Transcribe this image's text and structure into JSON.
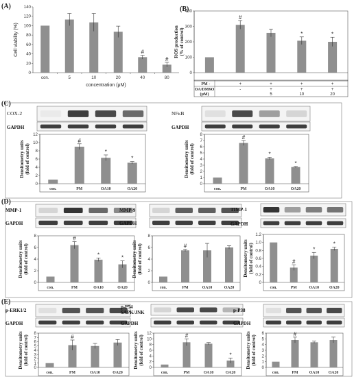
{
  "panel_labels": [
    "(A)",
    "(B)",
    "(C)",
    "(D)",
    "(E)"
  ],
  "bar_color": "#8f8f8f",
  "treatment_table": {
    "rows": [
      {
        "label": "PM",
        "cells": [
          "-",
          "+",
          "+",
          "+",
          "+"
        ]
      },
      {
        "label": "OA/DMSO",
        "cells": [
          "-",
          "-",
          "+",
          "+",
          "+"
        ]
      },
      {
        "label": "(μM)",
        "cells": [
          "",
          "",
          "5",
          "10",
          "20"
        ]
      }
    ]
  },
  "chart_data": [
    {
      "id": "A",
      "type": "bar",
      "ylabel": "Cell viability (%)",
      "xlabel": "concentration (μM)",
      "categories": [
        "con.",
        "5",
        "10",
        "20",
        "40",
        "80"
      ],
      "values": [
        100,
        113,
        107,
        87,
        33,
        17
      ],
      "errors": [
        0,
        13,
        19,
        12,
        4,
        5
      ],
      "marks": [
        "",
        "",
        "",
        "",
        "#",
        "#"
      ],
      "ylim": [
        0,
        140
      ],
      "yticks": [
        "0",
        "20",
        "40",
        "60",
        "80",
        "100",
        "120",
        "140"
      ]
    },
    {
      "id": "B",
      "type": "bar",
      "ylabel": "ROS production (% of control)",
      "xlabel": "",
      "categories": [
        "",
        "",
        "",
        "",
        ""
      ],
      "values": [
        100,
        310,
        258,
        207,
        200
      ],
      "errors": [
        0,
        28,
        25,
        25,
        30
      ],
      "marks": [
        "",
        "#",
        "",
        "*",
        "*"
      ],
      "ylim": [
        0,
        400
      ],
      "yticks": [
        "0",
        "100",
        "200",
        "300",
        "400"
      ]
    },
    {
      "id": "C1",
      "type": "bar",
      "ylabel": "Densitometry units (fold of control)",
      "xlabel": "",
      "blots": [
        "COX-2",
        "GAPDH"
      ],
      "categories": [
        "con.",
        "PM",
        "OA10",
        "OA20"
      ],
      "values": [
        1,
        9,
        6.3,
        5.1
      ],
      "errors": [
        0,
        0.7,
        0.7,
        0.3
      ],
      "marks": [
        "",
        "#",
        "*",
        "*"
      ],
      "ylim": [
        0,
        12
      ],
      "yticks": [
        "0",
        "2",
        "4",
        "6",
        "8",
        "10",
        "12"
      ]
    },
    {
      "id": "C2",
      "type": "bar",
      "ylabel": "Densitometry units (fold of control)",
      "xlabel": "",
      "blots": [
        "NFκB",
        "GAPDH"
      ],
      "categories": [
        "con.",
        "PM",
        "OA10",
        "OA20"
      ],
      "values": [
        1,
        6.6,
        4.1,
        2.7
      ],
      "errors": [
        0,
        0.4,
        0.2,
        0.1
      ],
      "marks": [
        "",
        "#",
        "*",
        "*"
      ],
      "ylim": [
        0,
        8
      ],
      "yticks": [
        "0",
        "1",
        "2",
        "3",
        "4",
        "5",
        "6",
        "7",
        "8"
      ]
    },
    {
      "id": "D1",
      "type": "bar",
      "ylabel": "Densitometry units (fold of control)",
      "xlabel": "",
      "blots": [
        "MMP-1",
        "GAPDH"
      ],
      "categories": [
        "con.",
        "PM",
        "OA10",
        "OA20"
      ],
      "values": [
        1,
        6.4,
        3.9,
        3.1
      ],
      "errors": [
        0,
        0.6,
        0.3,
        0.6
      ],
      "marks": [
        "",
        "#",
        "*",
        "*"
      ],
      "ylim": [
        0,
        8
      ],
      "yticks": [
        "0",
        "2",
        "4",
        "6",
        "8"
      ]
    },
    {
      "id": "D2",
      "type": "bar",
      "ylabel": "Densitometry units (fold of control)",
      "xlabel": "",
      "blots": [
        "MMP-9",
        "GAPDH"
      ],
      "categories": [
        "con.",
        "PM",
        "OA10",
        "OA20"
      ],
      "values": [
        1,
        5.5,
        5.5,
        6.0
      ],
      "errors": [
        0,
        0.2,
        1.2,
        0.3
      ],
      "marks": [
        "",
        "#",
        "",
        ""
      ],
      "ylim": [
        0,
        8
      ],
      "yticks": [
        "0",
        "2",
        "4",
        "6",
        "8"
      ]
    },
    {
      "id": "D3",
      "type": "bar",
      "ylabel": "Densitometry units (fold of control)",
      "xlabel": "",
      "blots": [
        "TIMP-1",
        "GAPDH"
      ],
      "categories": [
        "con.",
        "PM",
        "OA10",
        "OA20"
      ],
      "values": [
        1,
        0.37,
        0.67,
        0.84
      ],
      "errors": [
        0,
        0.07,
        0.08,
        0.04
      ],
      "marks": [
        "",
        "#",
        "*",
        "*"
      ],
      "ylim": [
        0,
        1.2
      ],
      "yticks": [
        "0",
        "0.2",
        "0.4",
        "0.6",
        "0.8",
        "1.0",
        "1.2"
      ]
    },
    {
      "id": "E1",
      "type": "bar",
      "ylabel": "Densitometry units (fold of control)",
      "xlabel": "",
      "blots": [
        "p-ERK1/2",
        "GAPDH"
      ],
      "categories": [
        "con.",
        "PM",
        "OA10",
        "OA20"
      ],
      "values": [
        1,
        5.2,
        5.0,
        5.8
      ],
      "errors": [
        0,
        1.2,
        0.6,
        0.7
      ],
      "marks": [
        "",
        "#",
        "",
        ""
      ],
      "ylim": [
        0,
        8
      ],
      "yticks": [
        "0",
        "1",
        "2",
        "3",
        "4",
        "5",
        "6",
        "7",
        "8"
      ]
    },
    {
      "id": "E2",
      "type": "bar",
      "ylabel": "Densitometry units (fold of control)",
      "xlabel": "",
      "blots": [
        "p-P54",
        "SAPK/JNK",
        "GAPDH"
      ],
      "categories": [
        "con.",
        "PM",
        "OA10",
        "OA20"
      ],
      "values": [
        1,
        8.8,
        8.3,
        2.4
      ],
      "errors": [
        0,
        1.2,
        0.4,
        0.9
      ],
      "marks": [
        "",
        "#",
        "",
        "*"
      ],
      "ylim": [
        0,
        12
      ],
      "yticks": [
        "0",
        "2",
        "4",
        "6",
        "8",
        "10",
        "12"
      ]
    },
    {
      "id": "E3",
      "type": "bar",
      "ylabel": "Densitometry units (fold of control)",
      "xlabel": "",
      "blots": [
        "p-P38",
        "GAPDH"
      ],
      "categories": [
        "con.",
        "PM",
        "OA10",
        "OA20"
      ],
      "values": [
        1,
        4.8,
        4.4,
        4.8
      ],
      "errors": [
        0,
        0.5,
        0.2,
        0.5
      ],
      "marks": [
        "",
        "#",
        "",
        ""
      ],
      "ylim": [
        0,
        6
      ],
      "yticks": [
        "0",
        "1",
        "2",
        "3",
        "4",
        "5",
        "6"
      ]
    }
  ]
}
